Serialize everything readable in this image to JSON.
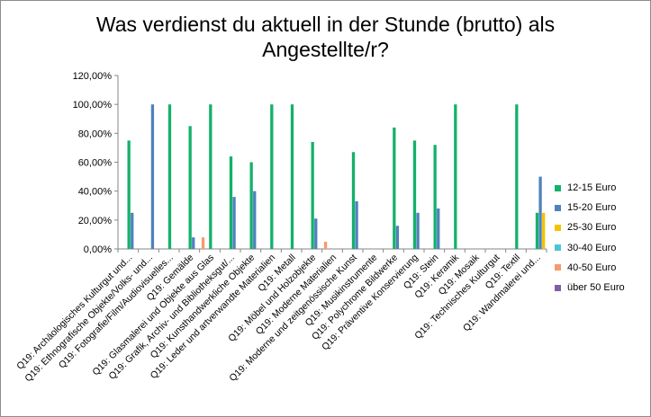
{
  "chart_data": {
    "type": "bar",
    "title": "Was verdienst du aktuell in der Stunde (brutto) als\nAngestellte/r?",
    "xlabel": "",
    "ylabel": "",
    "ylim": [
      0,
      120
    ],
    "y_ticks": [
      "0,00%",
      "20,00%",
      "40,00%",
      "60,00%",
      "80,00%",
      "100,00%",
      "120,00%"
    ],
    "grid": false,
    "legend_position": "right",
    "categories": [
      "Q19: Archäologisches Kulturgut und...",
      "Q19: Ethnografische Objekte/Volks- und...",
      "Q19: Fotografie/Film/Audiovisuelles...",
      "Q19: Gemälde",
      "Q19: Glasmalerei und Objekte aus Glas",
      "Q19: Grafik, Archiv- und Bibliotheksgut/...",
      "Q19: Kunsthandwerkliche Objekte",
      "Q19: Leder und artverwandte Materialien",
      "Q19: Metall",
      "Q19: Möbel und Holzobjekte",
      "Q19: Moderne Materialien",
      "Q19: Moderne und zeitgenössische Kunst",
      "Q19: Musikinstrumente",
      "Q19: Polychrome Bildwerke",
      "Q19: Präventive Konservierung",
      "Q19: Stein",
      "Q19: Keramik",
      "Q19: Mosaik",
      "Q19: Technisches Kulturgut",
      "Q19: Textil",
      "Q19: Wandmalerei und..."
    ],
    "series": [
      {
        "name": "12-15 Euro",
        "color": "#14b16a",
        "values": [
          75,
          0,
          100,
          85,
          100,
          64,
          60,
          100,
          100,
          74,
          0,
          67,
          0,
          84,
          75,
          72,
          100,
          0,
          0,
          100,
          25
        ]
      },
      {
        "name": "15-20 Euro",
        "color": "#4f81bd",
        "values": [
          25,
          100,
          0,
          8,
          0,
          36,
          40,
          0,
          0,
          21,
          0,
          33,
          0,
          16,
          25,
          28,
          0,
          0,
          0,
          0,
          50
        ]
      },
      {
        "name": "25-30 Euro",
        "color": "#f4c300",
        "values": [
          0,
          0,
          0,
          0,
          0,
          0,
          0,
          0,
          0,
          0,
          0,
          0,
          0,
          0,
          0,
          0,
          0,
          0,
          0,
          0,
          25
        ]
      },
      {
        "name": "30-40 Euro",
        "color": "#4bc4d6",
        "values": [
          0,
          0,
          0,
          0,
          0,
          0,
          0,
          0,
          0,
          0,
          0,
          0,
          0,
          0,
          0,
          0,
          0,
          0,
          0,
          0,
          0
        ]
      },
      {
        "name": "40-50 Euro",
        "color": "#f79a6b",
        "values": [
          0,
          0,
          0,
          8,
          0,
          0,
          0,
          0,
          0,
          5,
          0,
          0,
          0,
          0,
          0,
          0,
          0,
          0,
          0,
          0,
          0
        ]
      },
      {
        "name": "über 50 Euro",
        "color": "#7f5fa8",
        "values": [
          0,
          0,
          0,
          0,
          0,
          0,
          0,
          0,
          0,
          0,
          0,
          0,
          0,
          0,
          0,
          0,
          0,
          0,
          0,
          0,
          0
        ]
      }
    ]
  }
}
